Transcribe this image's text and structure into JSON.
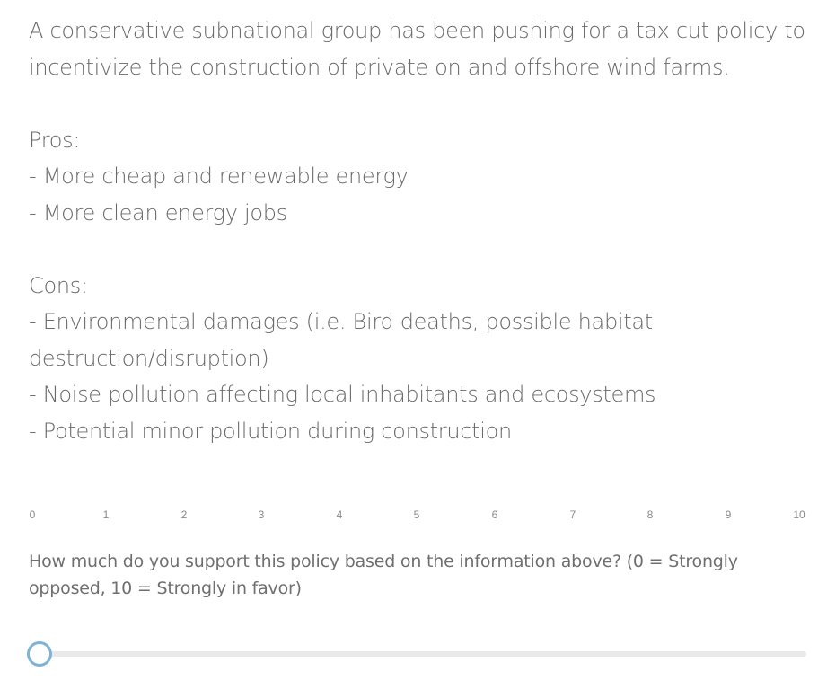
{
  "intro": "A conservative subnational group has been pushing for a tax cut policy to incentivize the construction of private on and offshore wind farms.",
  "pros": {
    "heading": "Pros:",
    "items": [
      "- More cheap and renewable energy",
      "- More clean energy jobs"
    ]
  },
  "cons": {
    "heading": "Cons:",
    "items": [
      "- Environmental damages (i.e. Bird deaths, possible habitat destruction/disruption)",
      "- Noise pollution affecting local inhabitants and ecosystems",
      "- Potential minor pollution during construction"
    ]
  },
  "scale": {
    "labels": [
      "0",
      "1",
      "2",
      "3",
      "4",
      "5",
      "6",
      "7",
      "8",
      "9",
      "10"
    ],
    "min": 0,
    "max": 10,
    "value": 0
  },
  "question": "How much do you support this policy based on the information above? (0 = Strongly opposed, 10 = Strongly in favor)",
  "colors": {
    "handle_border": "#7fb3d5",
    "track": "#e9e9e9",
    "text": "#6a6a6a"
  }
}
